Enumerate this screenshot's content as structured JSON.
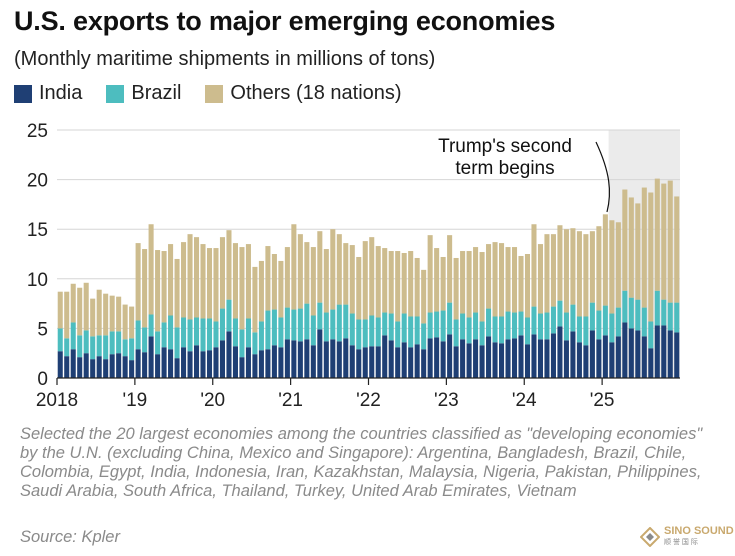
{
  "title": "U.S. exports to major emerging economies",
  "subtitle": "(Monthly maritime shipments in millions of tons)",
  "legend": [
    {
      "label": "India",
      "color": "#1f3f74"
    },
    {
      "label": "Brazil",
      "color": "#4dbdbf"
    },
    {
      "label": "Others (18 nations)",
      "color": "#cdbc8e"
    }
  ],
  "annotation": {
    "line1": "Trump's second",
    "line2": "term begins"
  },
  "note": "Selected the 20 largest economies among the countries classified as \"developing economies\" by the U.N. (excluding China, Mexico and Singapore): Argentina, Bangladesh, Brazil, Chile, Colombia, Egypt, India, Indonesia, Iran, Kazakhstan, Malaysia, Nigeria, Pakistan, Philippines, Saudi Arabia, South Africa, Thailand, Turkey, United Arab Emirates, Vietnam",
  "source": "Source: Kpler",
  "logo": {
    "text": "SINO SOUND",
    "sub": "顺 誉 国 际"
  },
  "chart_data": {
    "type": "bar",
    "stacked": true,
    "title": "U.S. exports to major emerging economies",
    "ylabel": "Monthly maritime shipments in millions of tons",
    "ylim": [
      0,
      25
    ],
    "yticks": [
      0,
      5,
      10,
      15,
      20,
      25
    ],
    "xtick_labels": [
      "2018",
      "'19",
      "'20",
      "'21",
      "'22",
      "'23",
      "'24",
      "'25"
    ],
    "grid": true,
    "legend_position": "top-left",
    "highlight_start_month": 85,
    "series": [
      {
        "name": "India",
        "color": "#1f3f74",
        "values": [
          2.7,
          2.2,
          2.9,
          2.1,
          2.5,
          1.9,
          2.2,
          1.9,
          2.4,
          2.5,
          2.2,
          1.8,
          2.9,
          2.6,
          4.2,
          2.4,
          3.1,
          2.9,
          2.0,
          3.1,
          2.7,
          3.3,
          2.7,
          2.8,
          3.1,
          3.8,
          4.7,
          3.2,
          2.1,
          3.1,
          2.4,
          2.8,
          2.9,
          3.3,
          3.1,
          3.9,
          3.8,
          3.7,
          3.9,
          3.3,
          4.9,
          3.7,
          3.9,
          3.7,
          4.0,
          3.3,
          2.9,
          3.1,
          3.2,
          3.2,
          4.3,
          3.8,
          3.1,
          3.6,
          3.1,
          3.4,
          2.9,
          4.0,
          4.1,
          3.7,
          4.4,
          3.2,
          3.9,
          3.5,
          3.9,
          3.3,
          4.2,
          3.6,
          3.5,
          3.9,
          4.0,
          4.3,
          3.4,
          4.4,
          3.9,
          3.9,
          4.5,
          5.2,
          3.8,
          4.7,
          3.6,
          3.3,
          4.8,
          3.9,
          4.3,
          3.6,
          4.2,
          5.6,
          5.0,
          4.8,
          4.2,
          3.0,
          5.3,
          5.3,
          4.8,
          4.6
        ]
      },
      {
        "name": "Brazil",
        "color": "#4dbdbf",
        "values": [
          2.3,
          1.8,
          2.7,
          2.2,
          2.3,
          2.3,
          2.1,
          2.4,
          2.3,
          2.2,
          1.7,
          2.2,
          2.9,
          2.5,
          2.2,
          2.3,
          2.5,
          3.4,
          3.1,
          3.0,
          3.2,
          2.8,
          3.3,
          3.2,
          2.6,
          3.2,
          3.2,
          2.8,
          2.8,
          2.9,
          2.2,
          2.9,
          3.9,
          3.6,
          3.0,
          3.2,
          3.1,
          3.3,
          3.6,
          3.0,
          2.7,
          2.9,
          3.0,
          3.7,
          3.4,
          3.2,
          3.0,
          2.8,
          3.1,
          2.9,
          2.3,
          2.7,
          2.6,
          2.9,
          3.1,
          2.8,
          2.6,
          2.6,
          2.6,
          3.1,
          3.2,
          2.7,
          2.6,
          2.6,
          2.7,
          2.4,
          2.8,
          2.6,
          2.7,
          2.8,
          2.6,
          2.4,
          2.7,
          2.8,
          2.6,
          2.7,
          2.7,
          2.6,
          2.8,
          2.7,
          2.6,
          2.9,
          2.8,
          2.9,
          3.0,
          2.9,
          2.9,
          3.2,
          3.1,
          3.1,
          2.9,
          2.7,
          3.5,
          2.6,
          2.8,
          3.0
        ]
      },
      {
        "name": "Others (18 nations)",
        "color": "#cdbc8e",
        "values": [
          3.7,
          4.7,
          3.9,
          4.8,
          4.8,
          3.8,
          4.6,
          4.2,
          3.6,
          3.5,
          3.5,
          3.2,
          7.8,
          7.9,
          9.1,
          8.2,
          7.2,
          7.2,
          6.9,
          7.6,
          8.6,
          8.1,
          7.5,
          7.1,
          7.4,
          7.2,
          7.0,
          7.6,
          8.3,
          7.5,
          6.6,
          6.1,
          6.5,
          5.6,
          5.7,
          6.1,
          8.6,
          7.5,
          6.2,
          6.9,
          7.2,
          6.4,
          8.1,
          7.1,
          6.2,
          6.9,
          6.3,
          7.9,
          7.9,
          7.2,
          6.5,
          6.3,
          7.1,
          6.1,
          6.6,
          5.9,
          5.4,
          7.8,
          6.4,
          5.4,
          6.8,
          6.2,
          6.3,
          6.7,
          6.6,
          7.0,
          6.5,
          7.5,
          7.4,
          6.5,
          6.6,
          5.6,
          6.4,
          8.3,
          7.0,
          7.9,
          7.3,
          7.6,
          8.4,
          7.7,
          8.6,
          8.3,
          7.2,
          8.5,
          9.2,
          9.4,
          8.6,
          10.2,
          10.1,
          9.7,
          12.1,
          13.0,
          11.3,
          11.7,
          12.3,
          10.7
        ]
      }
    ]
  }
}
